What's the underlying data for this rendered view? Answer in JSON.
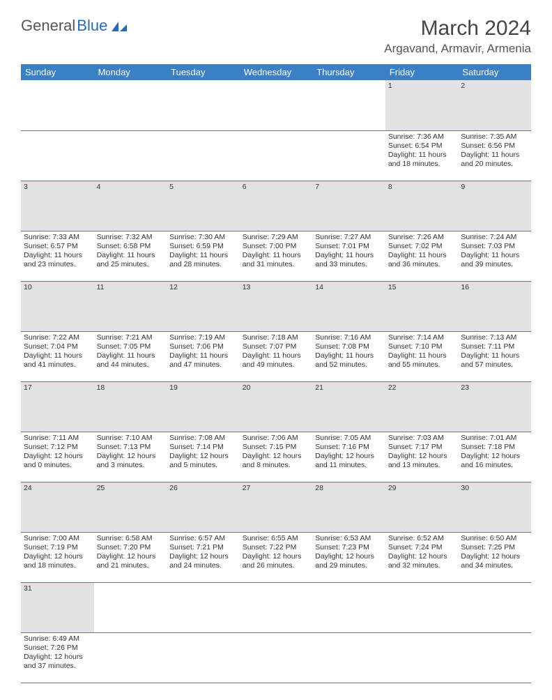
{
  "logo": {
    "text1": "General",
    "text2": "Blue"
  },
  "title": "March 2024",
  "location": "Argavand, Armavir, Armenia",
  "colors": {
    "header_bg": "#3b7fc4",
    "header_fg": "#ffffff",
    "daynum_bg": "#e2e2e2",
    "row_border": "#3b7fc4",
    "logo_accent": "#2a6bb0"
  },
  "weekdays": [
    "Sunday",
    "Monday",
    "Tuesday",
    "Wednesday",
    "Thursday",
    "Friday",
    "Saturday"
  ],
  "weeks": [
    {
      "nums": [
        "",
        "",
        "",
        "",
        "",
        "1",
        "2"
      ],
      "cells": [
        null,
        null,
        null,
        null,
        null,
        {
          "sunrise": "7:36 AM",
          "sunset": "6:54 PM",
          "daylight": "11 hours and 18 minutes."
        },
        {
          "sunrise": "7:35 AM",
          "sunset": "6:56 PM",
          "daylight": "11 hours and 20 minutes."
        }
      ]
    },
    {
      "nums": [
        "3",
        "4",
        "5",
        "6",
        "7",
        "8",
        "9"
      ],
      "cells": [
        {
          "sunrise": "7:33 AM",
          "sunset": "6:57 PM",
          "daylight": "11 hours and 23 minutes."
        },
        {
          "sunrise": "7:32 AM",
          "sunset": "6:58 PM",
          "daylight": "11 hours and 25 minutes."
        },
        {
          "sunrise": "7:30 AM",
          "sunset": "6:59 PM",
          "daylight": "11 hours and 28 minutes."
        },
        {
          "sunrise": "7:29 AM",
          "sunset": "7:00 PM",
          "daylight": "11 hours and 31 minutes."
        },
        {
          "sunrise": "7:27 AM",
          "sunset": "7:01 PM",
          "daylight": "11 hours and 33 minutes."
        },
        {
          "sunrise": "7:26 AM",
          "sunset": "7:02 PM",
          "daylight": "11 hours and 36 minutes."
        },
        {
          "sunrise": "7:24 AM",
          "sunset": "7:03 PM",
          "daylight": "11 hours and 39 minutes."
        }
      ]
    },
    {
      "nums": [
        "10",
        "11",
        "12",
        "13",
        "14",
        "15",
        "16"
      ],
      "cells": [
        {
          "sunrise": "7:22 AM",
          "sunset": "7:04 PM",
          "daylight": "11 hours and 41 minutes."
        },
        {
          "sunrise": "7:21 AM",
          "sunset": "7:05 PM",
          "daylight": "11 hours and 44 minutes."
        },
        {
          "sunrise": "7:19 AM",
          "sunset": "7:06 PM",
          "daylight": "11 hours and 47 minutes."
        },
        {
          "sunrise": "7:18 AM",
          "sunset": "7:07 PM",
          "daylight": "11 hours and 49 minutes."
        },
        {
          "sunrise": "7:16 AM",
          "sunset": "7:08 PM",
          "daylight": "11 hours and 52 minutes."
        },
        {
          "sunrise": "7:14 AM",
          "sunset": "7:10 PM",
          "daylight": "11 hours and 55 minutes."
        },
        {
          "sunrise": "7:13 AM",
          "sunset": "7:11 PM",
          "daylight": "11 hours and 57 minutes."
        }
      ]
    },
    {
      "nums": [
        "17",
        "18",
        "19",
        "20",
        "21",
        "22",
        "23"
      ],
      "cells": [
        {
          "sunrise": "7:11 AM",
          "sunset": "7:12 PM",
          "daylight": "12 hours and 0 minutes."
        },
        {
          "sunrise": "7:10 AM",
          "sunset": "7:13 PM",
          "daylight": "12 hours and 3 minutes."
        },
        {
          "sunrise": "7:08 AM",
          "sunset": "7:14 PM",
          "daylight": "12 hours and 5 minutes."
        },
        {
          "sunrise": "7:06 AM",
          "sunset": "7:15 PM",
          "daylight": "12 hours and 8 minutes."
        },
        {
          "sunrise": "7:05 AM",
          "sunset": "7:16 PM",
          "daylight": "12 hours and 11 minutes."
        },
        {
          "sunrise": "7:03 AM",
          "sunset": "7:17 PM",
          "daylight": "12 hours and 13 minutes."
        },
        {
          "sunrise": "7:01 AM",
          "sunset": "7:18 PM",
          "daylight": "12 hours and 16 minutes."
        }
      ]
    },
    {
      "nums": [
        "24",
        "25",
        "26",
        "27",
        "28",
        "29",
        "30"
      ],
      "cells": [
        {
          "sunrise": "7:00 AM",
          "sunset": "7:19 PM",
          "daylight": "12 hours and 18 minutes."
        },
        {
          "sunrise": "6:58 AM",
          "sunset": "7:20 PM",
          "daylight": "12 hours and 21 minutes."
        },
        {
          "sunrise": "6:57 AM",
          "sunset": "7:21 PM",
          "daylight": "12 hours and 24 minutes."
        },
        {
          "sunrise": "6:55 AM",
          "sunset": "7:22 PM",
          "daylight": "12 hours and 26 minutes."
        },
        {
          "sunrise": "6:53 AM",
          "sunset": "7:23 PM",
          "daylight": "12 hours and 29 minutes."
        },
        {
          "sunrise": "6:52 AM",
          "sunset": "7:24 PM",
          "daylight": "12 hours and 32 minutes."
        },
        {
          "sunrise": "6:50 AM",
          "sunset": "7:25 PM",
          "daylight": "12 hours and 34 minutes."
        }
      ]
    },
    {
      "nums": [
        "31",
        "",
        "",
        "",
        "",
        "",
        ""
      ],
      "cells": [
        {
          "sunrise": "6:49 AM",
          "sunset": "7:26 PM",
          "daylight": "12 hours and 37 minutes."
        },
        null,
        null,
        null,
        null,
        null,
        null
      ]
    }
  ],
  "labels": {
    "sunrise": "Sunrise:",
    "sunset": "Sunset:",
    "daylight": "Daylight:"
  }
}
